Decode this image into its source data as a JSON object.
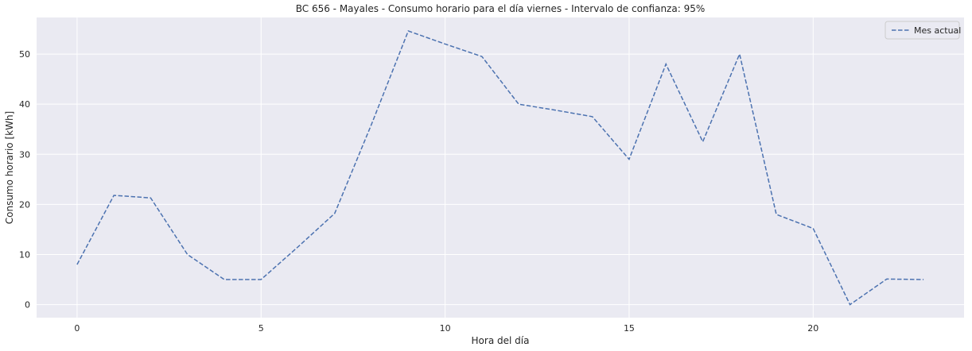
{
  "chart_data": {
    "type": "line",
    "title": "BC 656 - Mayales - Consumo horario para el día viernes - Intervalo de confianza: 95%",
    "xlabel": "Hora del día",
    "ylabel": "Consumo horario [kWh]",
    "xlim": [
      -1.1,
      24.1
    ],
    "ylim": [
      -2.6,
      57.3
    ],
    "xticks": [
      0,
      5,
      10,
      15,
      20
    ],
    "yticks": [
      0,
      10,
      20,
      30,
      40,
      50
    ],
    "grid": true,
    "legend": "top-right",
    "x": [
      0,
      1,
      2,
      3,
      4,
      5,
      6,
      7,
      8,
      9,
      10,
      11,
      12,
      13,
      14,
      15,
      16,
      17,
      18,
      19,
      20,
      21,
      22,
      23
    ],
    "series": [
      {
        "name": "Mes actual",
        "style": "dashed",
        "color": "#4c72b0",
        "values": [
          8.0,
          21.8,
          21.3,
          10.0,
          5.0,
          5.0,
          11.5,
          18.2,
          36.0,
          54.6,
          52.0,
          49.5,
          40.0,
          38.8,
          37.5,
          29.0,
          48.0,
          32.5,
          50.0,
          18.0,
          15.2,
          0.0,
          5.1,
          5.0
        ]
      }
    ],
    "colors": {
      "plot_background": "#eaeaf2",
      "grid": "#ffffff"
    }
  }
}
